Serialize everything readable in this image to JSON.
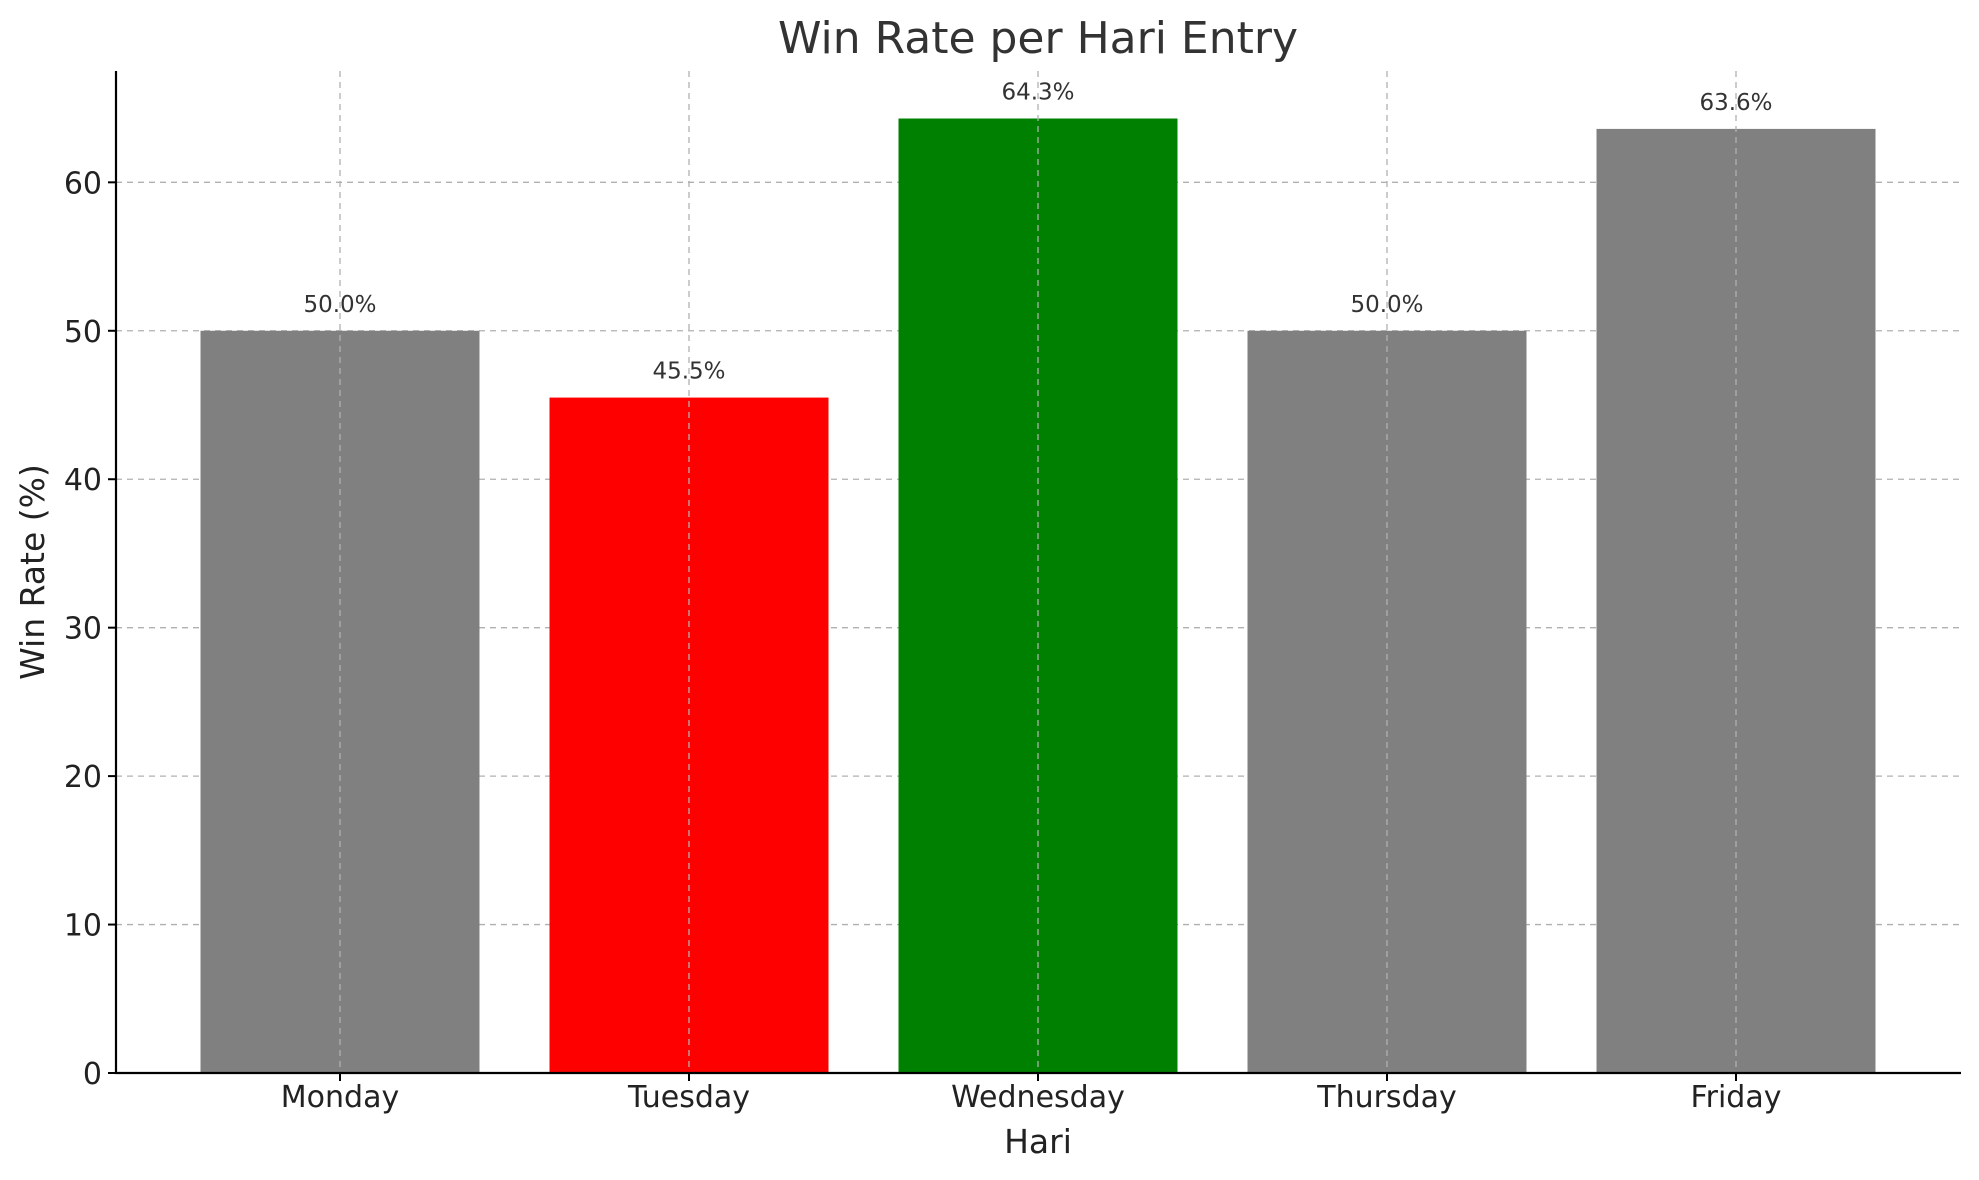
{
  "chart_data": {
    "type": "bar",
    "title": "Win Rate per Hari Entry",
    "xlabel": "Hari",
    "ylabel": "Win Rate (%)",
    "categories": [
      "Monday",
      "Tuesday",
      "Wednesday",
      "Thursday",
      "Friday"
    ],
    "values": [
      50.0,
      45.5,
      64.3,
      50.0,
      63.6
    ],
    "data_labels": [
      "50.0%",
      "45.5%",
      "64.3%",
      "50.0%",
      "63.6%"
    ],
    "colors": [
      "#808080",
      "#ff0000",
      "#008000",
      "#808080",
      "#808080"
    ],
    "ylim": [
      0,
      67.5
    ],
    "yticks": [
      0,
      10,
      20,
      30,
      40,
      50,
      60
    ],
    "grid": true,
    "legend": null
  }
}
